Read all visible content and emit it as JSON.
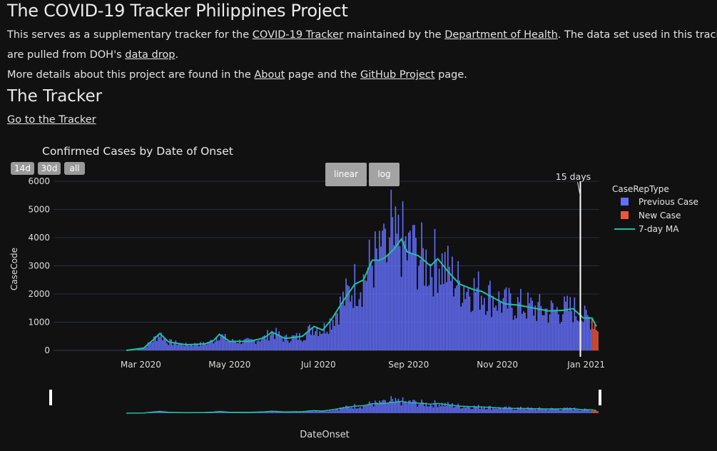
{
  "page": {
    "title": "The COVID-19 Tracker Philippines Project",
    "intro": {
      "part1": "This serves as a supplementary tracker for the ",
      "link1": "COVID-19 Tracker",
      "part2": " maintained by the ",
      "link2": "Department of Health",
      "part3": ". The data set used in this tracker",
      "part4": "are pulled from DOH's ",
      "link3": "data drop",
      "part5": "."
    },
    "details": {
      "part1": "More details about this project are found in the ",
      "link1": "About",
      "part2": " page and the ",
      "link2": "GitHub Project",
      "part3": " page."
    },
    "section_title": "The Tracker",
    "tracker_link": "Go to the Tracker"
  },
  "range_buttons": [
    "14d",
    "30d",
    "all"
  ],
  "scale_buttons": [
    "linear",
    "log"
  ],
  "chart_data": {
    "type": "bar",
    "title": "Confirmed Cases by Date of Onset",
    "xlabel": "DateOnset",
    "ylabel": "CaseCode",
    "x_range": [
      "2020-01-01",
      "2021-01-10"
    ],
    "ylim": [
      0,
      6000
    ],
    "yticks": [
      0,
      1000,
      2000,
      3000,
      4000,
      5000,
      6000
    ],
    "xticks": [
      {
        "date": "2020-03-01",
        "label": "Mar 2020"
      },
      {
        "date": "2020-05-01",
        "label": "May 2020"
      },
      {
        "date": "2020-07-01",
        "label": "Jul 2020"
      },
      {
        "date": "2020-09-01",
        "label": "Sep 2020"
      },
      {
        "date": "2020-11-01",
        "label": "Nov 2020"
      },
      {
        "date": "2021-01-01",
        "label": "Jan 2021"
      }
    ],
    "annotation": {
      "text": "15 days",
      "date": "2020-12-28"
    },
    "legend": {
      "title": "CaseRepType",
      "placement": "right"
    },
    "series": [
      {
        "name": "Previous Case",
        "kind": "bar",
        "color": "#636efa"
      },
      {
        "name": "New Case",
        "kind": "bar",
        "color": "#ef553b"
      },
      {
        "name": "7-day MA",
        "kind": "line",
        "color": "#1fc2a0"
      }
    ],
    "ma_points": [
      {
        "x": "2020-02-20",
        "y": 0
      },
      {
        "x": "2020-03-03",
        "y": 80
      },
      {
        "x": "2020-03-10",
        "y": 400
      },
      {
        "x": "2020-03-14",
        "y": 600
      },
      {
        "x": "2020-03-20",
        "y": 300
      },
      {
        "x": "2020-04-01",
        "y": 200
      },
      {
        "x": "2020-04-14",
        "y": 230
      },
      {
        "x": "2020-04-20",
        "y": 350
      },
      {
        "x": "2020-04-24",
        "y": 570
      },
      {
        "x": "2020-05-01",
        "y": 320
      },
      {
        "x": "2020-05-15",
        "y": 320
      },
      {
        "x": "2020-05-25",
        "y": 450
      },
      {
        "x": "2020-05-30",
        "y": 650
      },
      {
        "x": "2020-06-08",
        "y": 420
      },
      {
        "x": "2020-06-20",
        "y": 500
      },
      {
        "x": "2020-06-28",
        "y": 850
      },
      {
        "x": "2020-07-04",
        "y": 720
      },
      {
        "x": "2020-07-10",
        "y": 1100
      },
      {
        "x": "2020-07-18",
        "y": 1750
      },
      {
        "x": "2020-07-26",
        "y": 2350
      },
      {
        "x": "2020-08-01",
        "y": 2500
      },
      {
        "x": "2020-08-07",
        "y": 3200
      },
      {
        "x": "2020-08-12",
        "y": 3200
      },
      {
        "x": "2020-08-16",
        "y": 3300
      },
      {
        "x": "2020-08-22",
        "y": 3600
      },
      {
        "x": "2020-08-27",
        "y": 3950
      },
      {
        "x": "2020-08-31",
        "y": 3500
      },
      {
        "x": "2020-09-08",
        "y": 3350
      },
      {
        "x": "2020-09-16",
        "y": 3000
      },
      {
        "x": "2020-09-21",
        "y": 3250
      },
      {
        "x": "2020-09-28",
        "y": 2800
      },
      {
        "x": "2020-10-06",
        "y": 2350
      },
      {
        "x": "2020-10-16",
        "y": 2150
      },
      {
        "x": "2020-10-21",
        "y": 2100
      },
      {
        "x": "2020-10-28",
        "y": 1900
      },
      {
        "x": "2020-11-06",
        "y": 1650
      },
      {
        "x": "2020-11-16",
        "y": 1600
      },
      {
        "x": "2020-11-26",
        "y": 1500
      },
      {
        "x": "2020-12-06",
        "y": 1400
      },
      {
        "x": "2020-12-16",
        "y": 1420
      },
      {
        "x": "2020-12-23",
        "y": 1480
      },
      {
        "x": "2020-12-30",
        "y": 1150
      },
      {
        "x": "2021-01-05",
        "y": 1150
      },
      {
        "x": "2021-01-08",
        "y": 850
      }
    ]
  }
}
